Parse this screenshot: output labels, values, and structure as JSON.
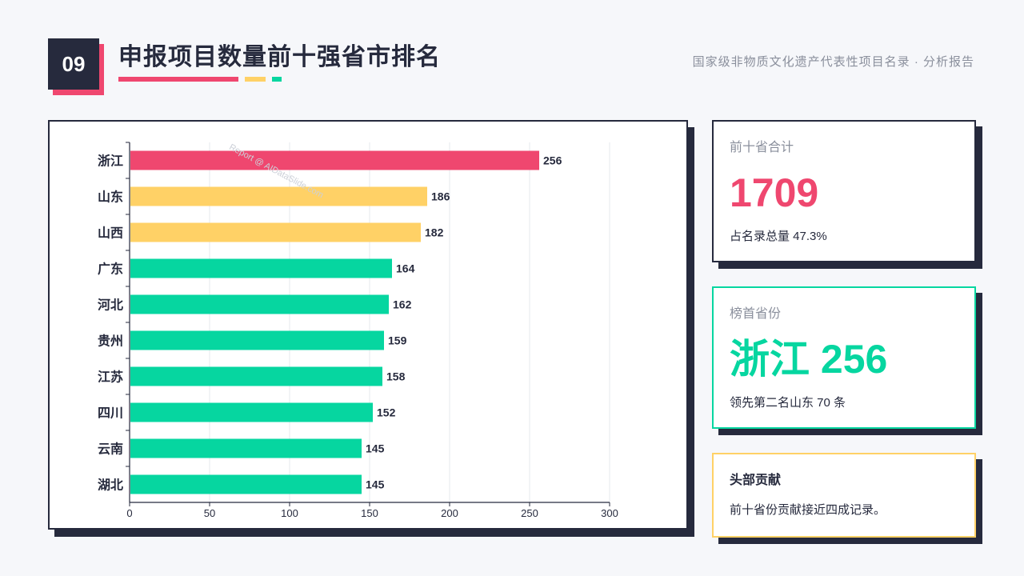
{
  "header": {
    "page_number": "09",
    "title": "申报项目数量前十强省市排名",
    "subtitle": "国家级非物质文化遗产代表性项目名录 · 分析报告"
  },
  "watermark": "Report @ AIDataSlide.com",
  "stats": {
    "total": {
      "label": "前十省合计",
      "value": "1709",
      "note": "占名录总量 47.3%"
    },
    "top": {
      "label": "榜首省份",
      "value": "浙江 256",
      "note": "领先第二名山东 70 条"
    },
    "insight": {
      "title": "头部贡献",
      "text": "前十省份贡献接近四成记录。"
    }
  },
  "colors": {
    "accent_pink": "#ef476f",
    "accent_yellow": "#ffd166",
    "accent_teal": "#06d6a0",
    "dark": "#262a3d"
  },
  "chart_data": {
    "type": "bar",
    "orientation": "horizontal",
    "categories": [
      "浙江",
      "山东",
      "山西",
      "广东",
      "河北",
      "贵州",
      "江苏",
      "四川",
      "云南",
      "湖北"
    ],
    "values": [
      256,
      186,
      182,
      164,
      162,
      159,
      158,
      152,
      145,
      145
    ],
    "bar_colors": [
      "#ef476f",
      "#ffd166",
      "#ffd166",
      "#06d6a0",
      "#06d6a0",
      "#06d6a0",
      "#06d6a0",
      "#06d6a0",
      "#06d6a0",
      "#06d6a0"
    ],
    "x_ticks": [
      0,
      50,
      100,
      150,
      200,
      250,
      300
    ],
    "xlim": [
      0,
      300
    ],
    "grid": true,
    "title": "",
    "xlabel": "",
    "ylabel": ""
  }
}
